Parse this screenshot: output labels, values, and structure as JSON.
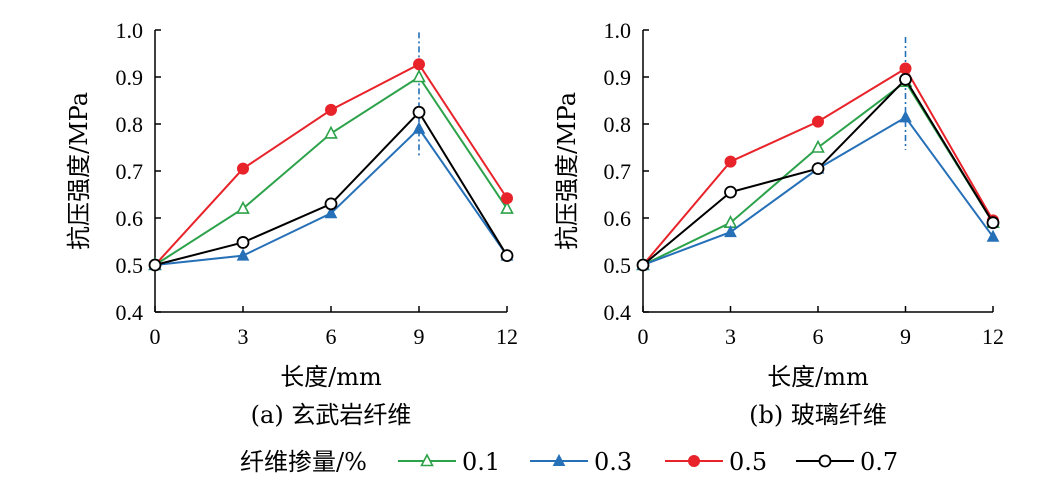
{
  "legend": {
    "title": "纤维掺量/%",
    "entries": [
      {
        "label": "0.1",
        "color": "#2ca24a",
        "marker": "triangle-open"
      },
      {
        "label": "0.3",
        "color": "#2670b8",
        "marker": "triangle-filled"
      },
      {
        "label": "0.5",
        "color": "#e8232a",
        "marker": "circle-filled"
      },
      {
        "label": "0.7",
        "color": "#000000",
        "marker": "circle-open"
      }
    ]
  },
  "chart_data": [
    {
      "type": "line",
      "caption": "(a) 玄武岩纤维",
      "xlabel": "长度/mm",
      "ylabel": "抗压强度/MPa",
      "x": [
        0,
        3,
        6,
        9,
        12
      ],
      "xticks": [
        "0",
        "3",
        "6",
        "9",
        "12"
      ],
      "yticks": [
        "0.4",
        "0.5",
        "0.6",
        "0.7",
        "0.8",
        "0.9",
        "1.0"
      ],
      "ylim": [
        0.4,
        1.0
      ],
      "reference_line_x": 9,
      "series": [
        {
          "name": "0.1",
          "values": [
            0.5,
            0.62,
            0.78,
            0.9,
            0.62
          ]
        },
        {
          "name": "0.3",
          "values": [
            0.5,
            0.52,
            0.61,
            0.79,
            0.52
          ]
        },
        {
          "name": "0.5",
          "values": [
            0.5,
            0.705,
            0.83,
            0.927,
            0.642
          ]
        },
        {
          "name": "0.7",
          "values": [
            0.5,
            0.548,
            0.63,
            0.825,
            0.52
          ]
        }
      ]
    },
    {
      "type": "line",
      "caption": "(b) 玻璃纤维",
      "xlabel": "长度/mm",
      "ylabel": "抗压强度/MPa",
      "x": [
        0,
        3,
        6,
        9,
        12
      ],
      "xticks": [
        "0",
        "3",
        "6",
        "9",
        "12"
      ],
      "yticks": [
        "0.4",
        "0.5",
        "0.6",
        "0.7",
        "0.8",
        "0.9",
        "1.0"
      ],
      "ylim": [
        0.4,
        1.0
      ],
      "reference_line_x": 9,
      "series": [
        {
          "name": "0.1",
          "values": [
            0.5,
            0.59,
            0.75,
            0.89,
            0.59
          ]
        },
        {
          "name": "0.3",
          "values": [
            0.5,
            0.57,
            0.705,
            0.814,
            0.56
          ]
        },
        {
          "name": "0.5",
          "values": [
            0.5,
            0.72,
            0.805,
            0.918,
            0.595
          ]
        },
        {
          "name": "0.7",
          "values": [
            0.5,
            0.655,
            0.705,
            0.895,
            0.59
          ]
        }
      ]
    }
  ]
}
